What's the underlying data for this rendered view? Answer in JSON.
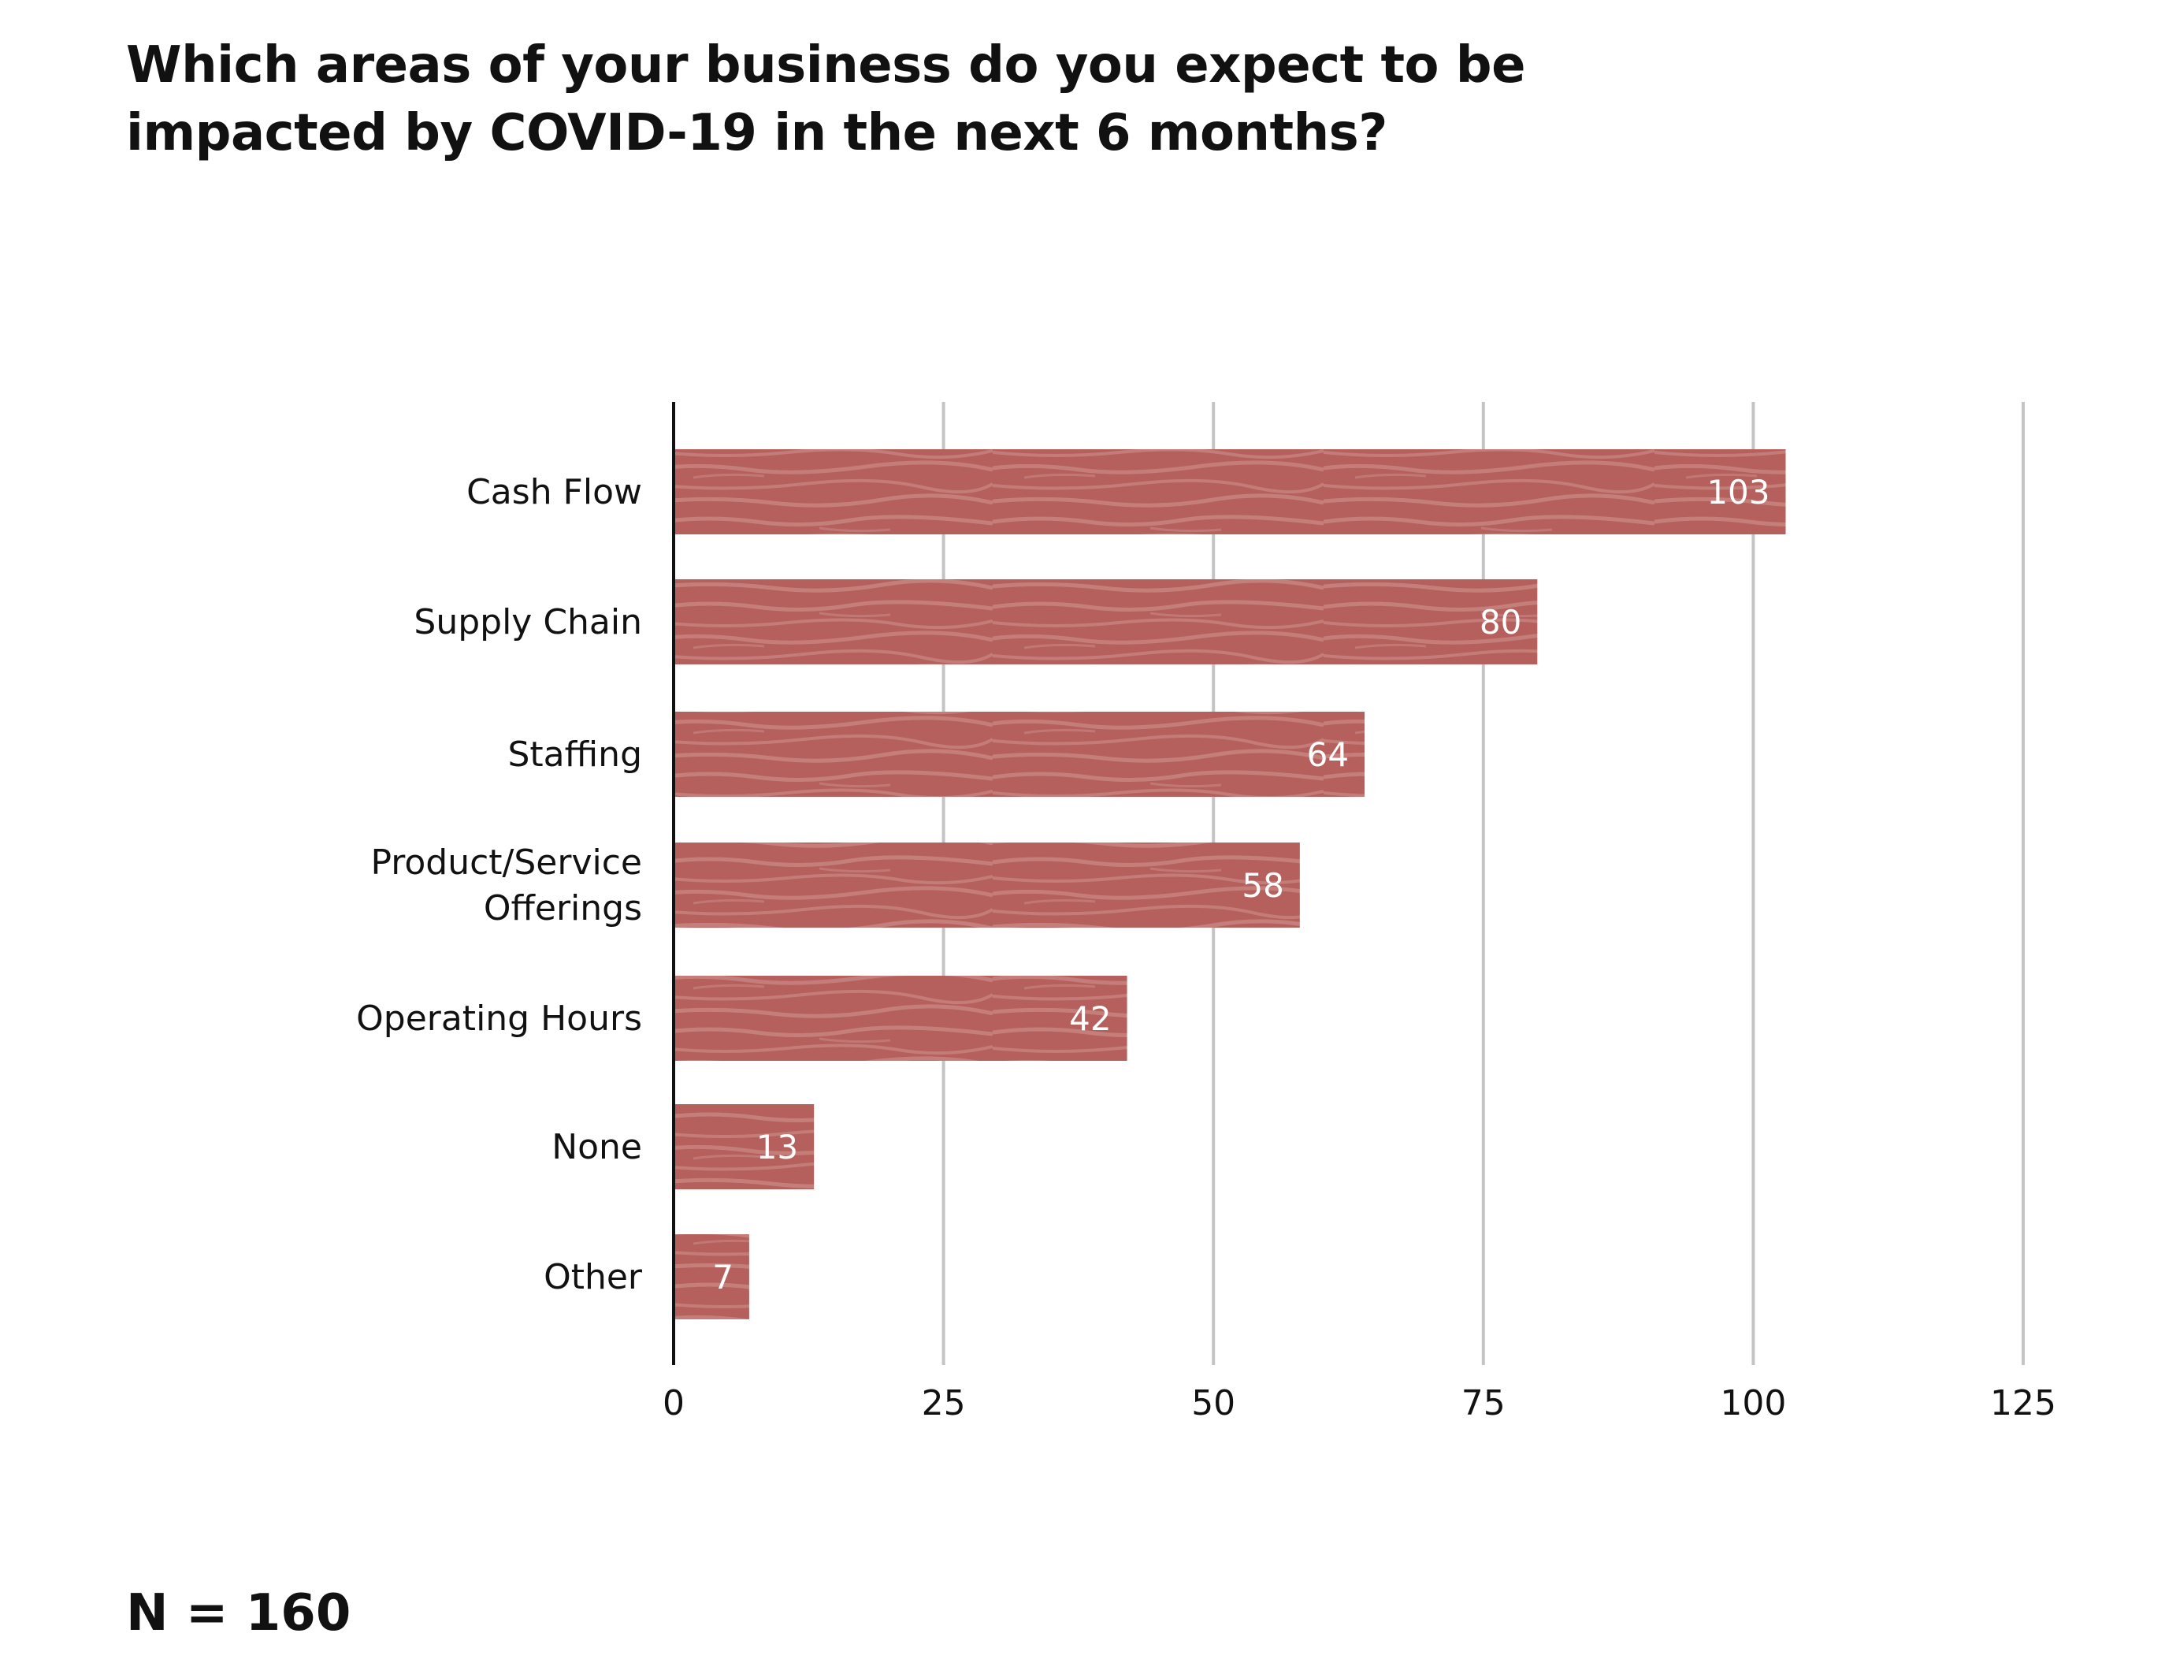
{
  "chart_data": {
    "type": "bar",
    "orientation": "horizontal",
    "title": [
      "Which areas of your business do you expect to be",
      "impacted by COVID-19 in the next 6 months?"
    ],
    "categories": [
      [
        "Cash Flow"
      ],
      [
        "Supply Chain"
      ],
      [
        "Staffing"
      ],
      [
        "Product/Service",
        "Offerings"
      ],
      [
        "Operating Hours"
      ],
      [
        "None"
      ],
      [
        "Other"
      ]
    ],
    "values": [
      103,
      80,
      64,
      58,
      42,
      13,
      7
    ],
    "data_labels": [
      "103",
      "80",
      "64",
      "58",
      "42",
      "13",
      "7"
    ],
    "xlim": [
      0,
      125
    ],
    "xticks": [
      0,
      25,
      50,
      75,
      100,
      125
    ],
    "xtick_labels": [
      "0",
      "25",
      "50",
      "75",
      "100",
      "125"
    ],
    "grid": true,
    "bar_color": "#b5605c",
    "bar_texture_color": "#c98783",
    "gridline_color": "#c4c4c4",
    "axis_color": "#111111",
    "label_color": "#ffffff"
  },
  "footnote": "N = 160"
}
